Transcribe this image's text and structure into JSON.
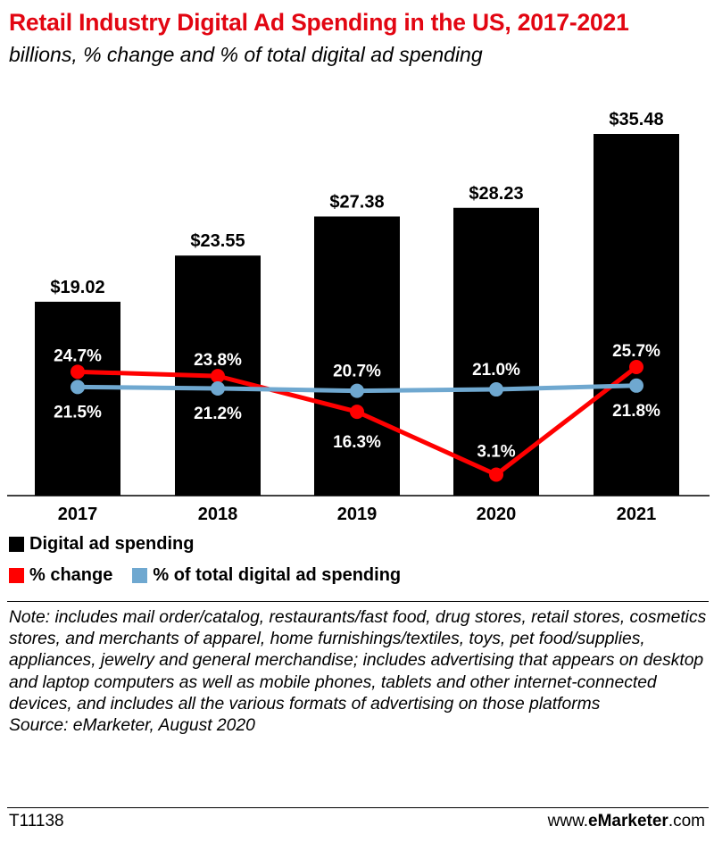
{
  "chart_data": {
    "type": "bar",
    "title": "Retail Industry Digital Ad Spending in the US, 2017-2021",
    "subtitle": "billions, % change and % of total digital ad spending",
    "categories": [
      "2017",
      "2018",
      "2019",
      "2020",
      "2021"
    ],
    "bar_series": {
      "name": "Digital ad spending",
      "values": [
        19.02,
        23.55,
        27.38,
        28.23,
        35.48
      ],
      "labels": [
        "$19.02",
        "$23.55",
        "$27.38",
        "$28.23",
        "$35.48"
      ],
      "color": "#000000"
    },
    "line_series": [
      {
        "name": "% change",
        "values": [
          24.7,
          23.8,
          16.3,
          3.1,
          25.7
        ],
        "labels": [
          "24.7%",
          "23.8%",
          "16.3%",
          "3.1%",
          "25.7%"
        ],
        "color": "#ff0000"
      },
      {
        "name": "% of total digital ad spending",
        "values": [
          21.5,
          21.2,
          20.7,
          21.0,
          21.8
        ],
        "labels": [
          "21.5%",
          "21.2%",
          "20.7%",
          "21.0%",
          "21.8%"
        ],
        "color": "#6fa8d0"
      }
    ],
    "bar_ylim": [
      0,
      35.48
    ],
    "line_ylim": [
      0,
      25.7
    ],
    "legend_placement": "bottom",
    "grid": false
  },
  "legend": {
    "bar_label": "Digital ad spending",
    "change_label": "% change",
    "share_label": "% of total digital ad spending"
  },
  "note": "Note: includes mail order/catalog, restaurants/fast food, drug stores, retail stores, cosmetics stores, and merchants of apparel, home furnishings/textiles, toys, pet food/supplies, appliances, jewelry and general merchandise; includes advertising that appears on desktop and laptop computers as well as mobile phones, tablets and other internet-connected devices, and includes all the various formats of advertising on those platforms",
  "source": "Source: eMarketer, August 2020",
  "footer": {
    "chart_id": "T11138",
    "brand_prefix": "www.",
    "brand_name": "eMarketer",
    "brand_suffix": ".com"
  }
}
